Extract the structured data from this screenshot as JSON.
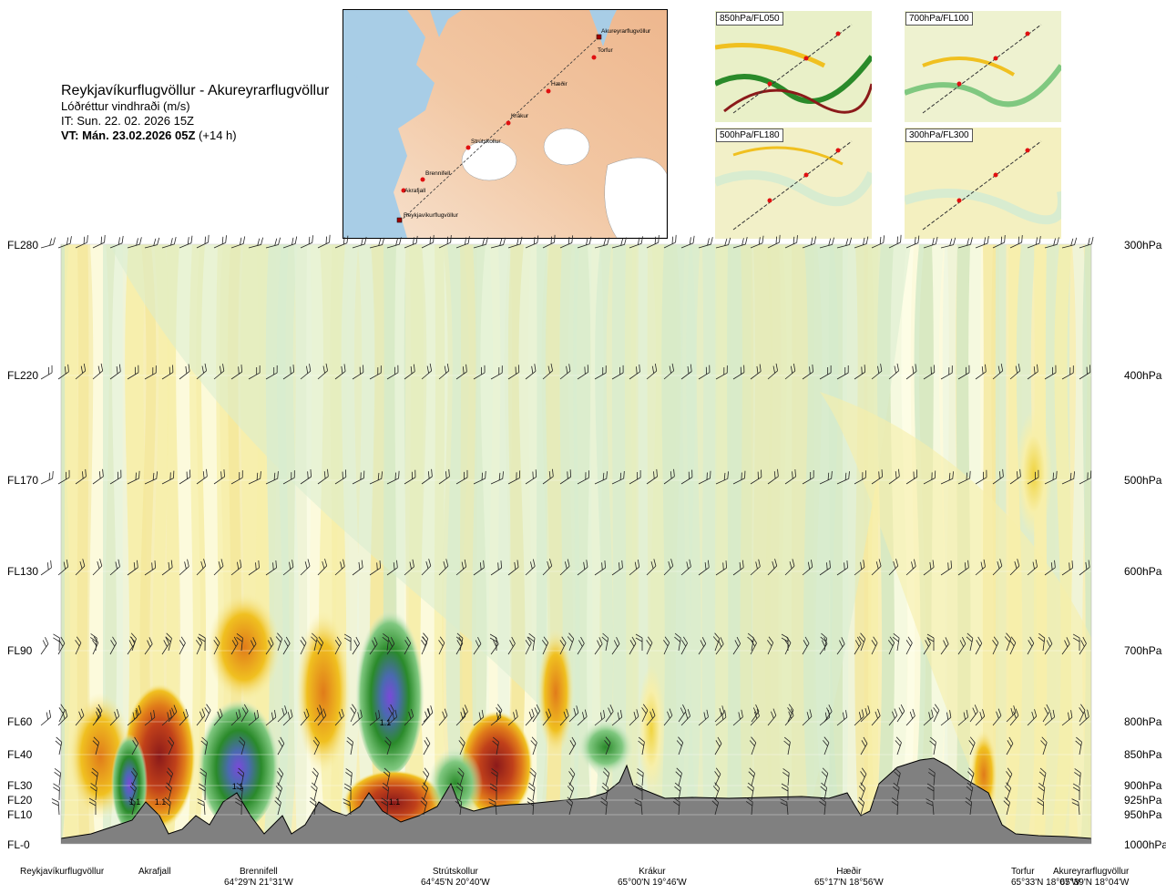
{
  "header": {
    "title": "Reykjavíkurflugvöllur - Akureyrarflugvöllur",
    "subtitle": "Lóðréttur vindhraði (m/s)",
    "it": "IT: Sun. 22. 02. 2026 15Z",
    "vt_bold": "VT: Mán. 23.02.2026 05Z",
    "vt_lead": "(+14 h)"
  },
  "map": {
    "stations": [
      "Akureyrarflugvöllur",
      "Torfur",
      "Hæðir",
      "Krákur",
      "Strútskollur",
      "Brennifell",
      "Akrafjall",
      "Reykjavíkurflugvöllur"
    ]
  },
  "mini_maps": [
    "850hPa/FL050",
    "700hPa/FL100",
    "500hPa/FL180",
    "300hPa/FL300"
  ],
  "chart_data": {
    "type": "heatmap",
    "title": "Reykjavíkurflugvöllur - Akureyrarflugvöllur",
    "variable": "Lóðréttur vindhraði (m/s)",
    "y_left_levels": [
      "FL280",
      "FL220",
      "FL170",
      "FL130",
      "FL90",
      "FL60",
      "FL40",
      "FL30",
      "FL20",
      "FL10",
      "FL-0"
    ],
    "y_right_levels": [
      "300hPa",
      "400hPa",
      "500hPa",
      "600hPa",
      "700hPa",
      "800hPa",
      "850hPa",
      "900hPa",
      "925hPa",
      "950hPa",
      "1000hPa"
    ],
    "annotations": [
      "1.1",
      "1.1",
      "1.1",
      "1.1",
      "1.1"
    ],
    "colors": {
      "strong_up": "#8b1a1a",
      "up": "#e07b1a",
      "weak_up": "#f0c020",
      "slight_up": "#f7efaa",
      "neutral": "#fdfde8",
      "slight_down": "#d8ecd0",
      "weak_down": "#80c880",
      "down": "#2a8a2a",
      "strong_down": "#4a6ab0",
      "very_strong_down": "#7a4ad8",
      "terrain": "#808080"
    }
  },
  "locations": [
    {
      "name": "Reykjavíkurflugvöllur",
      "coord": ""
    },
    {
      "name": "Akrafjall",
      "coord": ""
    },
    {
      "name": "Brennifell",
      "coord": "64°29'N 21°31'W"
    },
    {
      "name": "Strútskollur",
      "coord": "64°45'N 20°40'W"
    },
    {
      "name": "Krákur",
      "coord": "65°00'N 19°46'W"
    },
    {
      "name": "Hæðir",
      "coord": "65°17'N 18°56'W"
    },
    {
      "name": "Torfur",
      "coord": "65°33'N 18°07'W"
    },
    {
      "name": "Akureyrarflugvöllur",
      "coord": "65°39'N 18°04'W"
    }
  ]
}
